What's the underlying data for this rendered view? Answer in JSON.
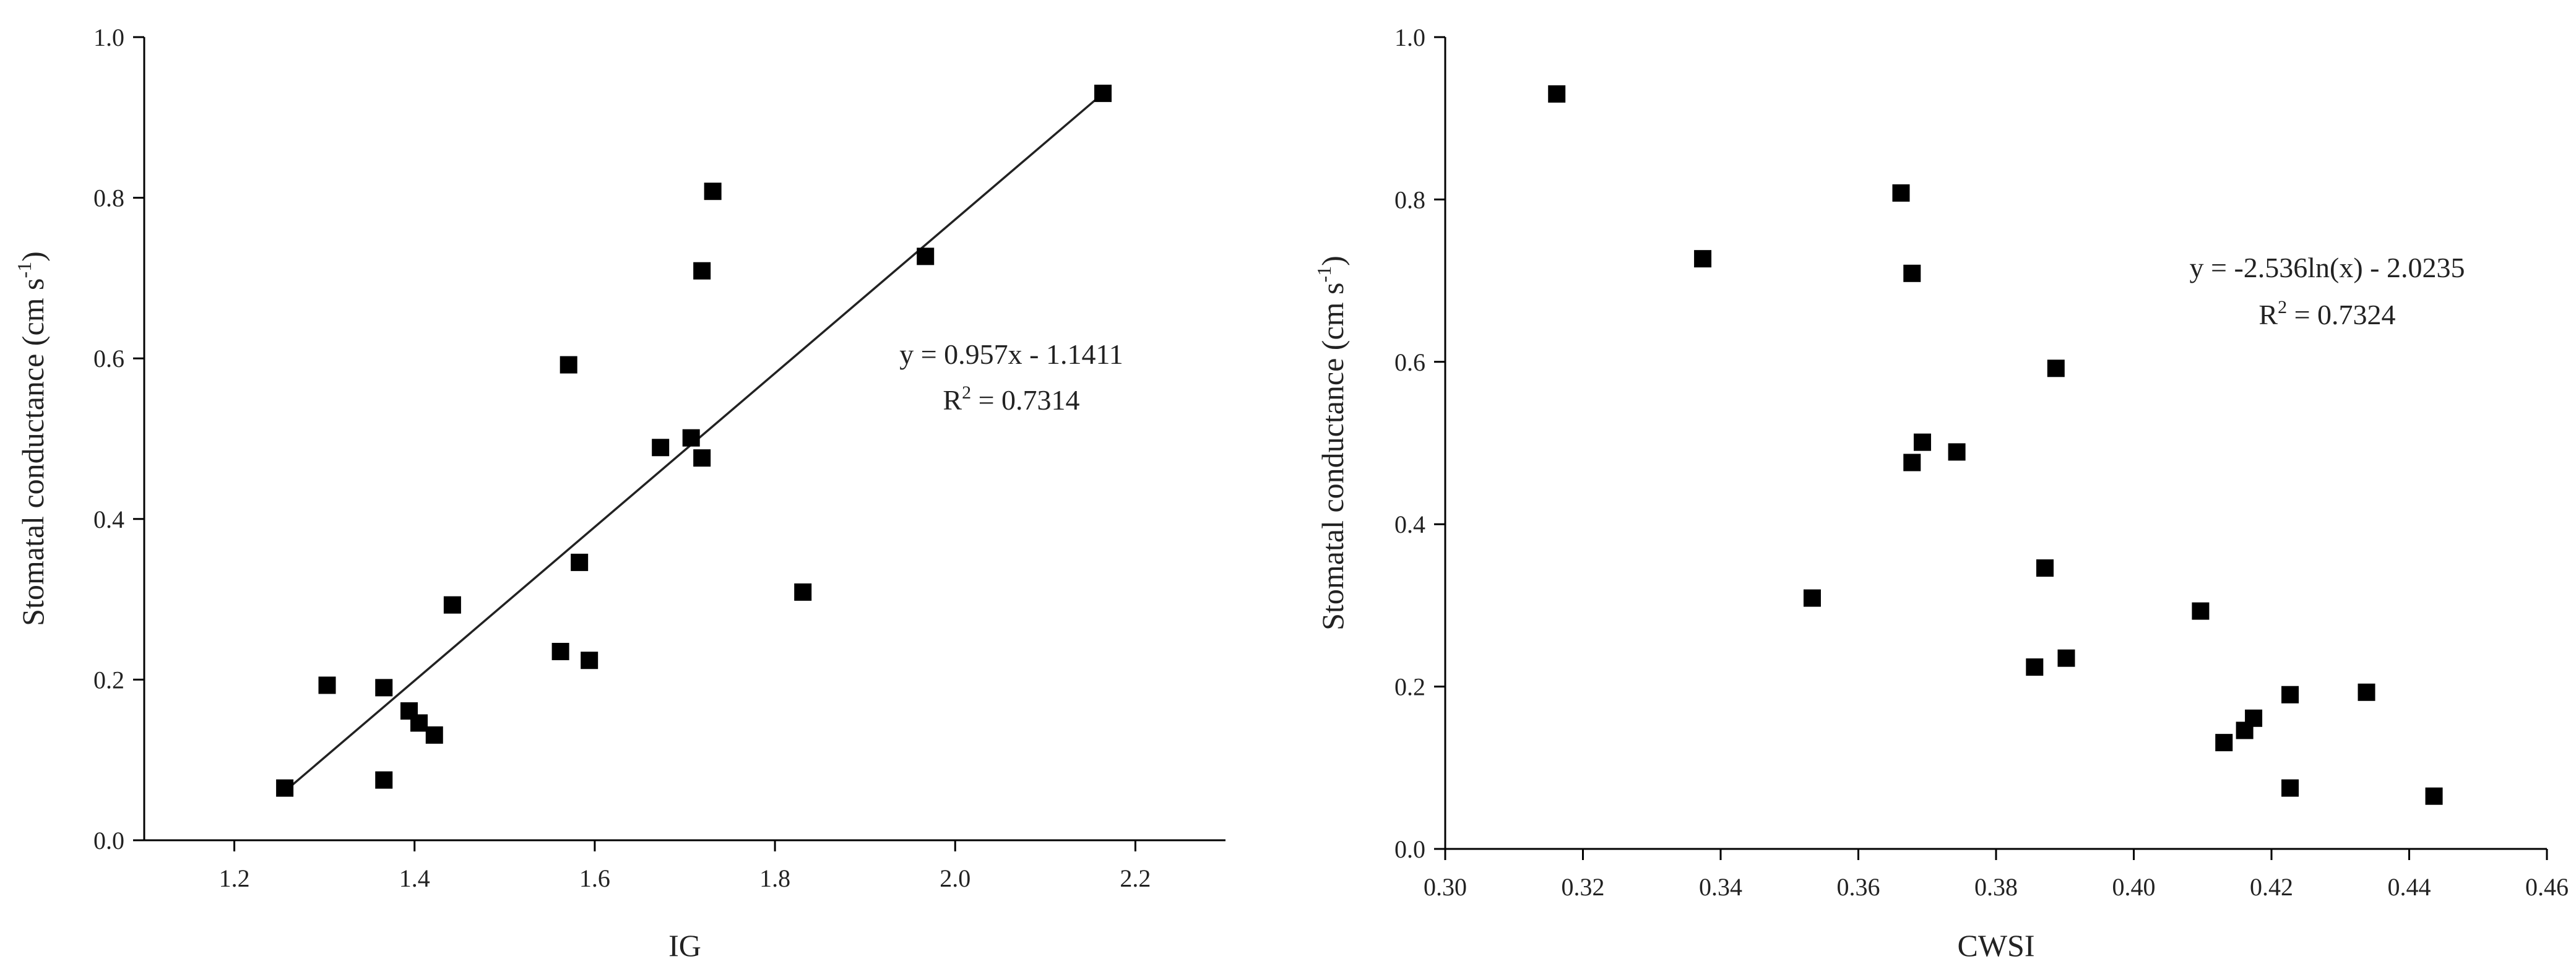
{
  "chart_data": [
    {
      "type": "scatter",
      "xlabel": "IG",
      "ylabel": "Stomatal conductance (cm s",
      "ylabel_sup": "-1",
      "ylabel_close": ")",
      "xlim": [
        1.1,
        2.3
      ],
      "ylim": [
        0.0,
        1.0
      ],
      "xticks": [
        "1.2",
        "1.4",
        "1.6",
        "1.8",
        "2.0",
        "2.2"
      ],
      "yticks": [
        "0.0",
        "0.2",
        "0.4",
        "0.6",
        "0.8",
        "1.0"
      ],
      "points": [
        [
          1.256,
          0.065
        ],
        [
          1.303,
          0.193
        ],
        [
          1.366,
          0.19
        ],
        [
          1.366,
          0.075
        ],
        [
          1.394,
          0.161
        ],
        [
          1.405,
          0.146
        ],
        [
          1.422,
          0.131
        ],
        [
          1.442,
          0.293
        ],
        [
          1.562,
          0.235
        ],
        [
          1.571,
          0.592
        ],
        [
          1.583,
          0.346
        ],
        [
          1.594,
          0.224
        ],
        [
          1.673,
          0.489
        ],
        [
          1.707,
          0.501
        ],
        [
          1.719,
          0.476
        ],
        [
          1.719,
          0.709
        ],
        [
          1.731,
          0.808
        ],
        [
          1.831,
          0.309
        ],
        [
          1.967,
          0.727
        ],
        [
          2.164,
          0.93
        ]
      ],
      "trendline": {
        "type": "linear",
        "slope": 0.957,
        "intercept": -1.1411,
        "x_from": 1.256,
        "x_to": 2.164
      },
      "equation": "y = 0.957x - 1.1411",
      "r2_prefix": "R",
      "r2_sup": "2",
      "r2_value": " = 0.7314"
    },
    {
      "type": "scatter",
      "xlabel": "CWSI",
      "ylabel": "Stomatal conductance (cm s",
      "ylabel_sup": "-1",
      "ylabel_close": ")",
      "xlim": [
        0.3,
        0.46
      ],
      "ylim": [
        0.0,
        1.0
      ],
      "xticks": [
        "0.30",
        "0.32",
        "0.34",
        "0.36",
        "0.38",
        "0.40",
        "0.42",
        "0.44",
        "0.46"
      ],
      "yticks": [
        "0.0",
        "0.2",
        "0.4",
        "0.6",
        "0.8",
        "1.0"
      ],
      "points": [
        [
          0.3162,
          0.93
        ],
        [
          0.3374,
          0.727
        ],
        [
          0.3533,
          0.309
        ],
        [
          0.3662,
          0.808
        ],
        [
          0.3678,
          0.709
        ],
        [
          0.3678,
          0.476
        ],
        [
          0.3693,
          0.501
        ],
        [
          0.3743,
          0.489
        ],
        [
          0.3856,
          0.224
        ],
        [
          0.3871,
          0.346
        ],
        [
          0.3887,
          0.592
        ],
        [
          0.3902,
          0.235
        ],
        [
          0.4097,
          0.293
        ],
        [
          0.4131,
          0.131
        ],
        [
          0.4161,
          0.146
        ],
        [
          0.4174,
          0.161
        ],
        [
          0.4227,
          0.19
        ],
        [
          0.4227,
          0.075
        ],
        [
          0.4338,
          0.193
        ],
        [
          0.4436,
          0.065
        ]
      ],
      "equation": "y = -2.536ln(x) - 2.0235",
      "r2_prefix": "R",
      "r2_sup": "2",
      "r2_value": " = 0.7324"
    }
  ]
}
